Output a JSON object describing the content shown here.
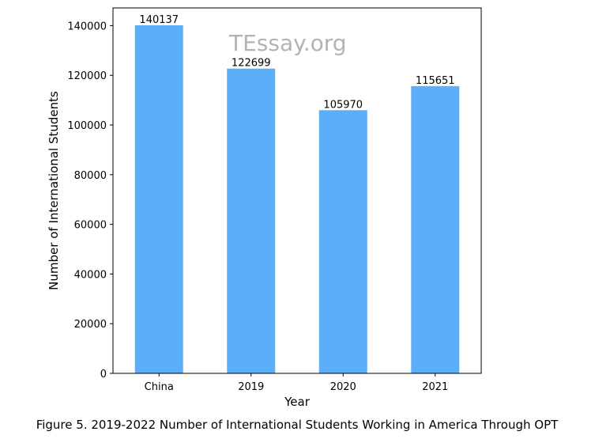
{
  "chart_data": {
    "type": "bar",
    "categories": [
      "China",
      "2019",
      "2020",
      "2021"
    ],
    "values": [
      140137,
      122699,
      105970,
      115651
    ],
    "data_labels": [
      "140137",
      "122699",
      "105970",
      "115651"
    ],
    "xlabel": "Year",
    "ylabel": "Number of International Students",
    "ylim": [
      0,
      147143
    ],
    "yticks": [
      0,
      20000,
      40000,
      60000,
      80000,
      100000,
      120000,
      140000
    ],
    "ytick_labels": [
      "0",
      "20000",
      "40000",
      "60000",
      "80000",
      "100000",
      "120000",
      "140000"
    ],
    "grid": false,
    "legend": "none",
    "bar_color": "#5daef8"
  },
  "watermark": "TEssay.org",
  "caption": "Figure 5. 2019-2022 Number of International Students Working in America Through OPT"
}
